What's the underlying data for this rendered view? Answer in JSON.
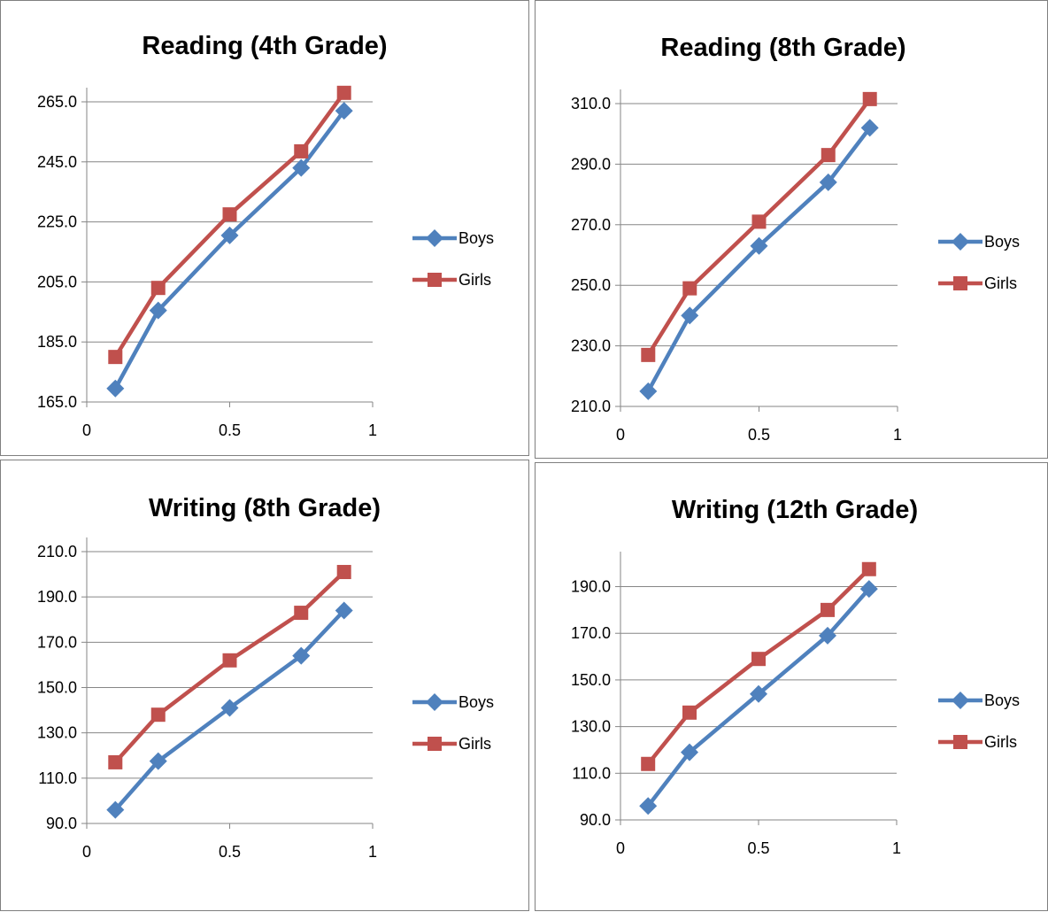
{
  "colors": {
    "boys": "#4f81bd",
    "girls": "#c0504d",
    "grid": "#868686",
    "axis": "#868686"
  },
  "chart_data": [
    {
      "type": "line",
      "title": "Reading (4th Grade)",
      "xlabel": "",
      "ylabel": "",
      "xlim": [
        0,
        1
      ],
      "ylim": [
        165,
        265
      ],
      "x_ticks": [
        {
          "v": 0,
          "label": "0"
        },
        {
          "v": 0.5,
          "label": "0.5"
        },
        {
          "v": 1,
          "label": "1"
        }
      ],
      "y_ticks": [
        {
          "v": 165,
          "label": "165.0"
        },
        {
          "v": 185,
          "label": "185.0"
        },
        {
          "v": 205,
          "label": "205.0"
        },
        {
          "v": 225,
          "label": "225.0"
        },
        {
          "v": 245,
          "label": "245.0"
        },
        {
          "v": 265,
          "label": "265.0"
        }
      ],
      "grid": true,
      "legend": "right",
      "series": [
        {
          "name": "Boys",
          "marker": "diamond",
          "x": [
            0.1,
            0.25,
            0.5,
            0.75,
            0.9
          ],
          "y": [
            169.5,
            195.5,
            220.5,
            243.0,
            262.0
          ]
        },
        {
          "name": "Girls",
          "marker": "square",
          "x": [
            0.1,
            0.25,
            0.5,
            0.75,
            0.9
          ],
          "y": [
            180.0,
            203.0,
            227.5,
            248.5,
            268.0
          ]
        }
      ]
    },
    {
      "type": "line",
      "title": "Reading (8th Grade)",
      "xlabel": "",
      "ylabel": "",
      "xlim": [
        0,
        1
      ],
      "ylim": [
        210,
        310
      ],
      "x_ticks": [
        {
          "v": 0,
          "label": "0"
        },
        {
          "v": 0.5,
          "label": "0.5"
        },
        {
          "v": 1,
          "label": "1"
        }
      ],
      "y_ticks": [
        {
          "v": 210,
          "label": "210.0"
        },
        {
          "v": 230,
          "label": "230.0"
        },
        {
          "v": 250,
          "label": "250.0"
        },
        {
          "v": 270,
          "label": "270.0"
        },
        {
          "v": 290,
          "label": "290.0"
        },
        {
          "v": 310,
          "label": "310.0"
        }
      ],
      "grid": true,
      "legend": "right",
      "series": [
        {
          "name": "Boys",
          "marker": "diamond",
          "x": [
            0.1,
            0.25,
            0.5,
            0.75,
            0.9
          ],
          "y": [
            215.0,
            240.0,
            263.0,
            284.0,
            302.0
          ]
        },
        {
          "name": "Girls",
          "marker": "square",
          "x": [
            0.1,
            0.25,
            0.5,
            0.75,
            0.9
          ],
          "y": [
            227.0,
            249.0,
            271.0,
            293.0,
            311.5
          ]
        }
      ]
    },
    {
      "type": "line",
      "title": "Writing (8th Grade)",
      "xlabel": "",
      "ylabel": "",
      "xlim": [
        0,
        1
      ],
      "ylim": [
        90,
        210
      ],
      "x_ticks": [
        {
          "v": 0,
          "label": "0"
        },
        {
          "v": 0.5,
          "label": "0.5"
        },
        {
          "v": 1,
          "label": "1"
        }
      ],
      "y_ticks": [
        {
          "v": 90,
          "label": "90.0"
        },
        {
          "v": 110,
          "label": "110.0"
        },
        {
          "v": 130,
          "label": "130.0"
        },
        {
          "v": 150,
          "label": "150.0"
        },
        {
          "v": 170,
          "label": "170.0"
        },
        {
          "v": 190,
          "label": "190.0"
        },
        {
          "v": 210,
          "label": "210.0"
        }
      ],
      "grid": true,
      "legend": "right",
      "series": [
        {
          "name": "Boys",
          "marker": "diamond",
          "x": [
            0.1,
            0.25,
            0.5,
            0.75,
            0.9
          ],
          "y": [
            96.0,
            117.5,
            141.0,
            164.0,
            184.0
          ]
        },
        {
          "name": "Girls",
          "marker": "square",
          "x": [
            0.1,
            0.25,
            0.5,
            0.75,
            0.9
          ],
          "y": [
            117.0,
            138.0,
            162.0,
            183.0,
            201.0
          ]
        }
      ]
    },
    {
      "type": "line",
      "title": "Writing (12th Grade)",
      "xlabel": "",
      "ylabel": "",
      "xlim": [
        0,
        1
      ],
      "ylim": [
        90,
        205
      ],
      "x_ticks": [
        {
          "v": 0,
          "label": "0"
        },
        {
          "v": 0.5,
          "label": "0.5"
        },
        {
          "v": 1,
          "label": "1"
        }
      ],
      "y_ticks": [
        {
          "v": 90,
          "label": "90.0"
        },
        {
          "v": 110,
          "label": "110.0"
        },
        {
          "v": 130,
          "label": "130.0"
        },
        {
          "v": 150,
          "label": "150.0"
        },
        {
          "v": 170,
          "label": "170.0"
        },
        {
          "v": 190,
          "label": "190.0"
        }
      ],
      "grid": true,
      "legend": "right",
      "series": [
        {
          "name": "Boys",
          "marker": "diamond",
          "x": [
            0.1,
            0.25,
            0.5,
            0.75,
            0.9
          ],
          "y": [
            96.0,
            119.0,
            144.0,
            169.0,
            189.0
          ]
        },
        {
          "name": "Girls",
          "marker": "square",
          "x": [
            0.1,
            0.25,
            0.5,
            0.75,
            0.9
          ],
          "y": [
            114.0,
            136.0,
            159.0,
            180.0,
            197.5
          ]
        }
      ]
    }
  ]
}
